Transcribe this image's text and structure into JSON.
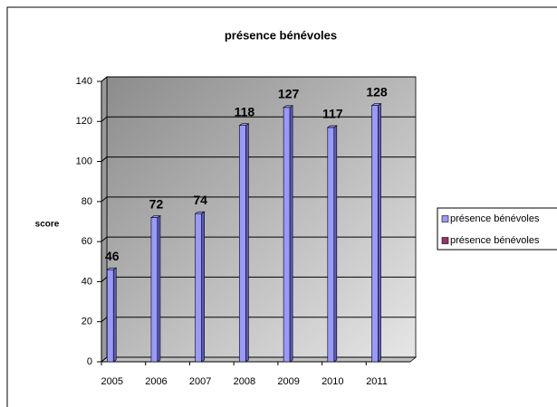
{
  "chart_data": {
    "type": "bar",
    "title": "présence bénévoles",
    "y_label": "score",
    "categories": [
      "2005",
      "2006",
      "2007",
      "2008",
      "2009",
      "2010",
      "2011"
    ],
    "series": [
      {
        "name": "présence bénévoles",
        "color": "#9999ff",
        "values": [
          46,
          72,
          74,
          118,
          127,
          117,
          128
        ]
      },
      {
        "name": "présence bénévoles",
        "color": "#993366",
        "values": [
          null,
          null,
          null,
          null,
          null,
          null,
          null
        ]
      }
    ],
    "ylim": [
      0,
      140
    ],
    "yticks": [
      0,
      20,
      40,
      60,
      80,
      100,
      120,
      140
    ],
    "grid": true,
    "legend": "right"
  }
}
